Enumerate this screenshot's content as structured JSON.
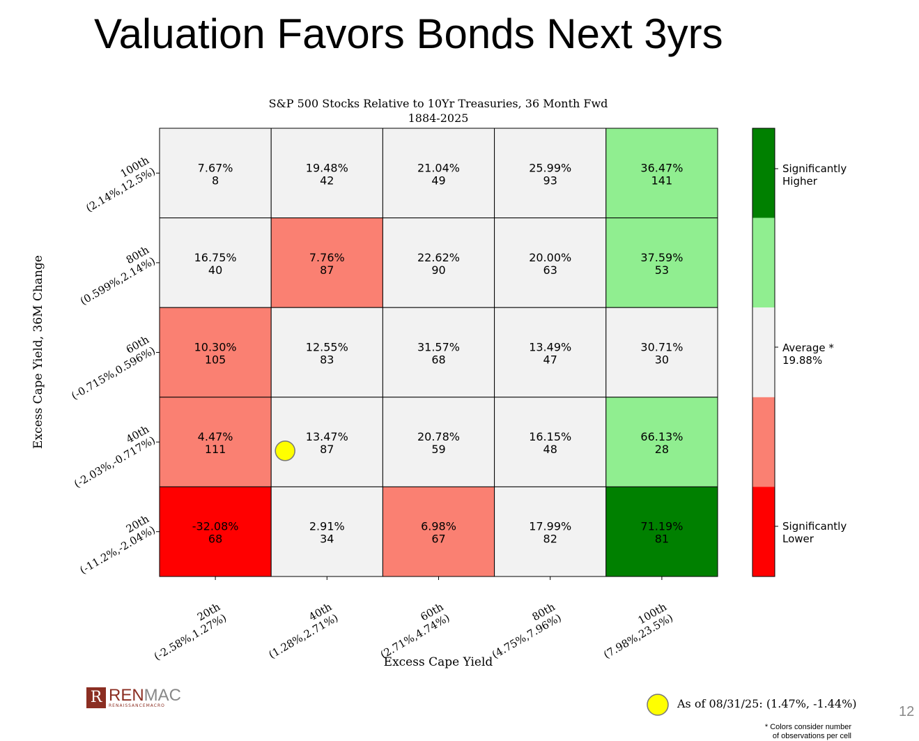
{
  "slide": {
    "title": "Valuation Favors Bonds Next 3yrs",
    "page_number": "12",
    "logo": "RENMAC",
    "logo_sub": "RENAISSANCEMACRO",
    "asof": "As of 08/31/25:  (1.47%, -1.44%)",
    "note_line1": "* Colors consider number",
    "note_line2": "of observations per cell"
  },
  "chart_data": {
    "type": "heatmap",
    "title": "S&P 500 Stocks Relative to 10Yr Treasuries, 36 Month Fwd",
    "subtitle": "1884-2025",
    "xlabel": "Excess Cape Yield",
    "ylabel": "Excess Cape Yield, 36M Change",
    "x_ticks": [
      [
        "20th",
        "(-2.58%,1.27%)"
      ],
      [
        "40th",
        "(1.28%,2.71%)"
      ],
      [
        "60th",
        "(2.71%,4.74%)"
      ],
      [
        "80th",
        "(4.75%,7.96%)"
      ],
      [
        "100th",
        "(7.98%,23.5%)"
      ]
    ],
    "y_ticks_top_to_bottom": [
      [
        "100th",
        "(2.14%,12.5%)"
      ],
      [
        "80th",
        "(0.599%,2.14%)"
      ],
      [
        "60th",
        "(-0.715%,0.596%)"
      ],
      [
        "40th",
        "(-2.03%,-0.717%)"
      ],
      [
        "20th",
        "(-11.2%,-2.04%)"
      ]
    ],
    "rows_top_to_bottom": [
      [
        [
          "7.67%",
          "8",
          2
        ],
        [
          "19.48%",
          "42",
          2
        ],
        [
          "21.04%",
          "49",
          2
        ],
        [
          "25.99%",
          "93",
          2
        ],
        [
          "36.47%",
          "141",
          3
        ]
      ],
      [
        [
          "16.75%",
          "40",
          2
        ],
        [
          "7.76%",
          "87",
          1
        ],
        [
          "22.62%",
          "90",
          2
        ],
        [
          "20.00%",
          "63",
          2
        ],
        [
          "37.59%",
          "53",
          3
        ]
      ],
      [
        [
          "10.30%",
          "105",
          1
        ],
        [
          "12.55%",
          "83",
          2
        ],
        [
          "31.57%",
          "68",
          2
        ],
        [
          "13.49%",
          "47",
          2
        ],
        [
          "30.71%",
          "30",
          2
        ]
      ],
      [
        [
          "4.47%",
          "111",
          1
        ],
        [
          "13.47%",
          "87",
          2
        ],
        [
          "20.78%",
          "59",
          2
        ],
        [
          "16.15%",
          "48",
          2
        ],
        [
          "66.13%",
          "28",
          3
        ]
      ],
      [
        [
          "-32.08%",
          "68",
          0
        ],
        [
          "2.91%",
          "34",
          2
        ],
        [
          "6.98%",
          "67",
          1
        ],
        [
          "17.99%",
          "82",
          2
        ],
        [
          "71.19%",
          "81",
          4
        ]
      ]
    ],
    "color_levels": [
      "#ff0000",
      "#fa8072",
      "#f2f2f2",
      "#90ee90",
      "#008000"
    ],
    "colorbar_labels": {
      "high1": "Significantly",
      "high2": "Higher",
      "avg1": "Average *",
      "avg2": "19.88%",
      "low1": "Significantly",
      "low2": "Lower"
    },
    "marker": {
      "x": 1.47,
      "y": -1.44,
      "x_bin": 1,
      "y_bin_from_top": 3,
      "color": "#ffff00"
    }
  }
}
